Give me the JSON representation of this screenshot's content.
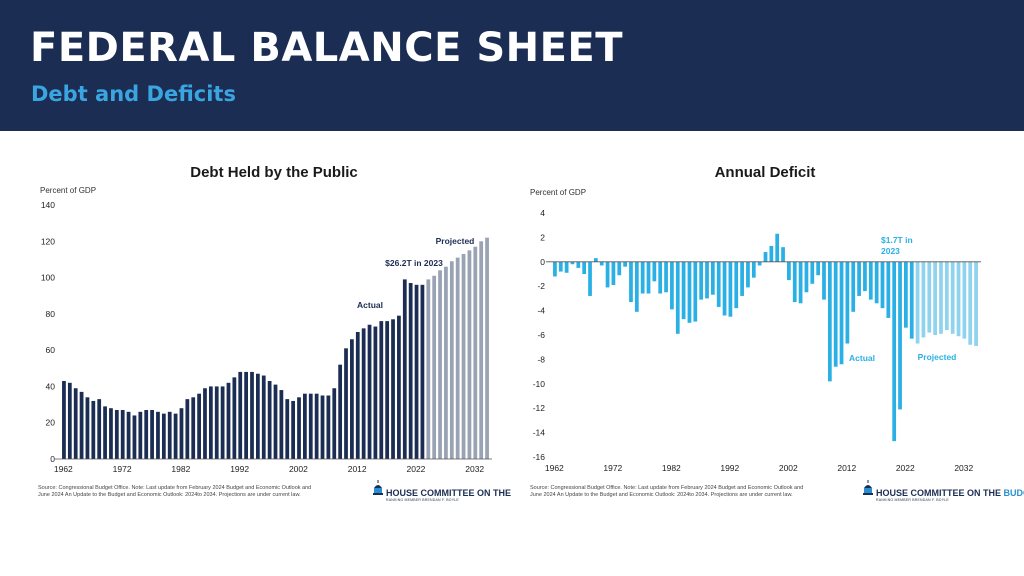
{
  "header": {
    "title": "FEDERAL BALANCE SHEET",
    "subtitle": "Debt and Deficits"
  },
  "colors": {
    "header_bg": "#1b2d52",
    "subtitle": "#3aa5e0",
    "debt_actual": "#1b2d52",
    "debt_projected": "#9aa3b3",
    "deficit_actual": "#2ab0e4",
    "deficit_projected": "#8fd3ee"
  },
  "source_note_line1": "Source: Congressional Budget Office. Note: Last update from February 2024 Budget and Economic Outlook and",
  "source_note_line2": "June 2024 An Update to the Budget and Economic Outlook: 2024to 2034. Projections are under current law.",
  "logo": {
    "prefix": "HOUSE COMMITTEE ON THE ",
    "accent": "BUDGET",
    "small": "RANKING MEMBER BRENDAN F. BOYLE",
    "icon": "capitol-building-icon"
  },
  "chart_data": [
    {
      "type": "bar",
      "title": "Debt Held by the Public",
      "unit_label": "Percent of GDP",
      "x_start": 1962,
      "x_end": 2034,
      "last_actual_year": 2023,
      "ylim": [
        0,
        140
      ],
      "yticks": [
        0,
        20,
        40,
        60,
        80,
        100,
        120,
        140
      ],
      "xticks": [
        1962,
        1972,
        1982,
        1992,
        2002,
        2012,
        2022,
        2032
      ],
      "grid": false,
      "annotations": {
        "actual": "Actual",
        "projected": "Projected",
        "callout": "$26.2T in 2023"
      },
      "series": [
        {
          "years": [
            1962,
            1963,
            1964,
            1965,
            1966,
            1967,
            1968,
            1969,
            1970,
            1971,
            1972,
            1973,
            1974,
            1975,
            1976,
            1977,
            1978,
            1979,
            1980,
            1981,
            1982,
            1983,
            1984,
            1985,
            1986,
            1987,
            1988,
            1989,
            1990,
            1991,
            1992,
            1993,
            1994,
            1995,
            1996,
            1997,
            1998,
            1999,
            2000,
            2001,
            2002,
            2003,
            2004,
            2005,
            2006,
            2007,
            2008,
            2009,
            2010,
            2011,
            2012,
            2013,
            2014,
            2015,
            2016,
            2017,
            2018,
            2019,
            2020,
            2021,
            2022,
            2023,
            2024,
            2025,
            2026,
            2027,
            2028,
            2029,
            2030,
            2031,
            2032,
            2033,
            2034
          ],
          "values": [
            43,
            42,
            39,
            37,
            34,
            32,
            33,
            29,
            28,
            27,
            27,
            26,
            24,
            26,
            27,
            27,
            26,
            25,
            26,
            25,
            28,
            33,
            34,
            36,
            39,
            40,
            40,
            40,
            42,
            45,
            48,
            48,
            48,
            47,
            46,
            43,
            41,
            38,
            33,
            32,
            34,
            36,
            36,
            36,
            35,
            35,
            39,
            52,
            61,
            66,
            70,
            72,
            74,
            73,
            76,
            76,
            77,
            79,
            99,
            97,
            96,
            96,
            99,
            101,
            104,
            106,
            109,
            111,
            113,
            115,
            117,
            120,
            122
          ]
        }
      ]
    },
    {
      "type": "bar",
      "title": "Annual Deficit",
      "unit_label": "Percent of GDP",
      "x_start": 1962,
      "x_end": 2034,
      "last_actual_year": 2023,
      "ylim": [
        -16,
        4
      ],
      "yticks": [
        4,
        2,
        0,
        -2,
        -4,
        -6,
        -8,
        -10,
        -12,
        -14,
        -16
      ],
      "xticks": [
        1962,
        1972,
        1982,
        1992,
        2002,
        2012,
        2022,
        2032
      ],
      "grid": false,
      "annotations": {
        "actual": "Actual",
        "projected": "Projected",
        "callout_line1": "$1.7T in",
        "callout_line2": "2023"
      },
      "series": [
        {
          "years": [
            1962,
            1963,
            1964,
            1965,
            1966,
            1967,
            1968,
            1969,
            1970,
            1971,
            1972,
            1973,
            1974,
            1975,
            1976,
            1977,
            1978,
            1979,
            1980,
            1981,
            1982,
            1983,
            1984,
            1985,
            1986,
            1987,
            1988,
            1989,
            1990,
            1991,
            1992,
            1993,
            1994,
            1995,
            1996,
            1997,
            1998,
            1999,
            2000,
            2001,
            2002,
            2003,
            2004,
            2005,
            2006,
            2007,
            2008,
            2009,
            2010,
            2011,
            2012,
            2013,
            2014,
            2015,
            2016,
            2017,
            2018,
            2019,
            2020,
            2021,
            2022,
            2023,
            2024,
            2025,
            2026,
            2027,
            2028,
            2029,
            2030,
            2031,
            2032,
            2033,
            2034
          ],
          "values": [
            -1.2,
            -0.8,
            -0.9,
            -0.2,
            -0.5,
            -1.0,
            -2.8,
            0.3,
            -0.3,
            -2.1,
            -1.9,
            -1.1,
            -0.4,
            -3.3,
            -4.1,
            -2.6,
            -2.6,
            -1.6,
            -2.6,
            -2.5,
            -3.9,
            -5.9,
            -4.7,
            -5.0,
            -4.9,
            -3.1,
            -3.0,
            -2.7,
            -3.7,
            -4.4,
            -4.5,
            -3.8,
            -2.8,
            -2.1,
            -1.3,
            -0.3,
            0.8,
            1.3,
            2.3,
            1.2,
            -1.5,
            -3.3,
            -3.4,
            -2.5,
            -1.8,
            -1.1,
            -3.1,
            -9.8,
            -8.6,
            -8.4,
            -6.7,
            -4.1,
            -2.8,
            -2.4,
            -3.1,
            -3.4,
            -3.8,
            -4.6,
            -14.7,
            -12.1,
            -5.4,
            -6.3,
            -6.7,
            -6.2,
            -5.8,
            -6.0,
            -5.9,
            -5.6,
            -5.9,
            -6.1,
            -6.3,
            -6.8,
            -6.9
          ]
        }
      ]
    }
  ]
}
